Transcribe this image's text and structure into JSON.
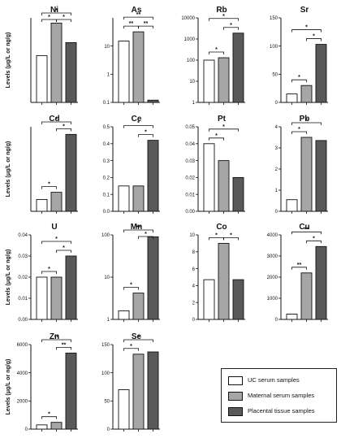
{
  "colors": {
    "uc": "#ffffff",
    "maternal": "#a6a6a6",
    "placental": "#595959",
    "stroke": "#111111"
  },
  "legend": {
    "items": [
      {
        "label": "UC serum samples",
        "color": "#ffffff"
      },
      {
        "label": "Maternal serum samples",
        "color": "#a6a6a6"
      },
      {
        "label": "Placental tissue samples",
        "color": "#595959"
      }
    ]
  },
  "chart_data": [
    {
      "type": "bar",
      "title": "Ni",
      "ylabel": "Levels (μg/L or ng/g)",
      "scale": "linear",
      "yticks": [],
      "ylim": [
        0,
        130
      ],
      "values": [
        72,
        122,
        92
      ],
      "brackets": [
        {
          "from": 0,
          "to": 2,
          "label": "*"
        },
        {
          "from": 0,
          "to": 1,
          "label": "*"
        },
        {
          "from": 1,
          "to": 2,
          "label": "*"
        }
      ]
    },
    {
      "type": "bar",
      "title": "As",
      "ylabel": "",
      "scale": "log",
      "yticks": [
        "0.1",
        "1",
        "10"
      ],
      "ylim": [
        0.1,
        100
      ],
      "values": [
        15,
        32,
        0.12
      ],
      "brackets": [
        {
          "from": 0,
          "to": 2,
          "label": "**"
        },
        {
          "from": 0,
          "to": 1,
          "label": "**"
        },
        {
          "from": 1,
          "to": 2,
          "label": "**"
        }
      ]
    },
    {
      "type": "bar",
      "title": "Rb",
      "ylabel": "",
      "scale": "log",
      "yticks": [
        "1",
        "10",
        "100",
        "1000",
        "10000"
      ],
      "ylim": [
        1,
        10000
      ],
      "values": [
        100,
        130,
        1900
      ],
      "brackets": [
        {
          "from": 0,
          "to": 2,
          "label": "*"
        },
        {
          "from": 1,
          "to": 2,
          "label": "*"
        },
        {
          "from": 0,
          "to": 1,
          "label": "*"
        }
      ]
    },
    {
      "type": "bar",
      "title": "Sr",
      "ylabel": "",
      "scale": "linear",
      "yticks": [
        "0",
        "50",
        "100",
        "150"
      ],
      "ylim": [
        0,
        150
      ],
      "values": [
        15,
        30,
        103
      ],
      "brackets": [
        {
          "from": 0,
          "to": 2,
          "label": "*"
        },
        {
          "from": 1,
          "to": 2,
          "label": "*"
        },
        {
          "from": 0,
          "to": 1,
          "label": "*"
        }
      ]
    },
    {
      "type": "bar",
      "title": "Cd",
      "ylabel": "Levels (μg/L or ng/g)",
      "scale": "linear",
      "yticks": [],
      "ylim": [
        0,
        2.0
      ],
      "values": [
        0.28,
        0.45,
        1.82
      ],
      "brackets": [
        {
          "from": 0,
          "to": 2,
          "label": "*"
        },
        {
          "from": 1,
          "to": 2,
          "label": "*"
        },
        {
          "from": 0,
          "to": 1,
          "label": "*"
        }
      ]
    },
    {
      "type": "bar",
      "title": "Ce",
      "ylabel": "",
      "scale": "linear",
      "yticks": [
        "0.0",
        "0.1",
        "0.2",
        "0.3",
        "0.4",
        "0.5"
      ],
      "ylim": [
        0,
        0.5
      ],
      "values": [
        0.15,
        0.15,
        0.42
      ],
      "brackets": [
        {
          "from": 0,
          "to": 2,
          "label": "*"
        },
        {
          "from": 1,
          "to": 2,
          "label": "*"
        }
      ]
    },
    {
      "type": "bar",
      "title": "Pt",
      "ylabel": "",
      "scale": "linear",
      "yticks": [
        "0.00",
        "0.01",
        "0.02",
        "0.03",
        "0.04",
        "0.05"
      ],
      "ylim": [
        0,
        0.05
      ],
      "values": [
        0.04,
        0.03,
        0.02
      ],
      "brackets": [
        {
          "from": 0,
          "to": 2,
          "label": "*"
        },
        {
          "from": 0,
          "to": 1,
          "label": "*"
        }
      ]
    },
    {
      "type": "bar",
      "title": "Pb",
      "ylabel": "",
      "scale": "linear",
      "yticks": [
        "0",
        "1",
        "2",
        "3",
        "4"
      ],
      "ylim": [
        0,
        4
      ],
      "values": [
        0.55,
        3.5,
        3.35
      ],
      "brackets": [
        {
          "from": 0,
          "to": 2,
          "label": "*"
        },
        {
          "from": 0,
          "to": 1,
          "label": "*"
        }
      ]
    },
    {
      "type": "bar",
      "title": "U",
      "ylabel": "Levels (μg/L or ng/g)",
      "scale": "linear",
      "yticks": [
        "0.00",
        "0.01",
        "0.02",
        "0.03",
        "0.04"
      ],
      "ylim": [
        0,
        0.04
      ],
      "values": [
        0.02,
        0.02,
        0.03
      ],
      "brackets": [
        {
          "from": 0,
          "to": 2,
          "label": "*"
        },
        {
          "from": 1,
          "to": 2,
          "label": "*"
        },
        {
          "from": 0,
          "to": 1,
          "label": "*"
        }
      ]
    },
    {
      "type": "bar",
      "title": "Mn",
      "ylabel": "",
      "scale": "log",
      "yticks": [
        "1",
        "10",
        "100"
      ],
      "ylim": [
        1,
        100
      ],
      "values": [
        1.6,
        4.2,
        90
      ],
      "brackets": [
        {
          "from": 0,
          "to": 2,
          "label": "**"
        },
        {
          "from": 1,
          "to": 2,
          "label": "*"
        },
        {
          "from": 0,
          "to": 1,
          "label": "*"
        }
      ]
    },
    {
      "type": "bar",
      "title": "Co",
      "ylabel": "",
      "scale": "linear",
      "yticks": [
        "0",
        "2",
        "4",
        "6",
        "8",
        "10"
      ],
      "ylim": [
        0,
        10
      ],
      "values": [
        4.7,
        9.0,
        4.7
      ],
      "brackets": [
        {
          "from": 0,
          "to": 1,
          "label": "*"
        },
        {
          "from": 1,
          "to": 2,
          "label": "*"
        }
      ]
    },
    {
      "type": "bar",
      "title": "Cu",
      "ylabel": "",
      "scale": "linear",
      "yticks": [
        "0",
        "1000",
        "2000",
        "3000",
        "4000"
      ],
      "ylim": [
        0,
        4000
      ],
      "values": [
        250,
        2200,
        3450
      ],
      "brackets": [
        {
          "from": 0,
          "to": 2,
          "label": "**"
        },
        {
          "from": 1,
          "to": 2,
          "label": "*"
        },
        {
          "from": 0,
          "to": 1,
          "label": "**"
        }
      ]
    },
    {
      "type": "bar",
      "title": "Zn",
      "ylabel": "Levels (μg/L or ng/g)",
      "scale": "linear",
      "yticks": [
        "0",
        "2000",
        "4000",
        "6000"
      ],
      "ylim": [
        0,
        6000
      ],
      "values": [
        300,
        480,
        5400
      ],
      "brackets": [
        {
          "from": 0,
          "to": 2,
          "label": "**"
        },
        {
          "from": 1,
          "to": 2,
          "label": "**"
        },
        {
          "from": 0,
          "to": 1,
          "label": "*"
        }
      ]
    },
    {
      "type": "bar",
      "title": "Se",
      "ylabel": "",
      "scale": "linear",
      "yticks": [
        "0",
        "50",
        "100",
        "150"
      ],
      "ylim": [
        0,
        150
      ],
      "values": [
        70,
        133,
        137
      ],
      "brackets": [
        {
          "from": 0,
          "to": 2,
          "label": "*"
        },
        {
          "from": 0,
          "to": 1,
          "label": "*"
        }
      ]
    }
  ]
}
